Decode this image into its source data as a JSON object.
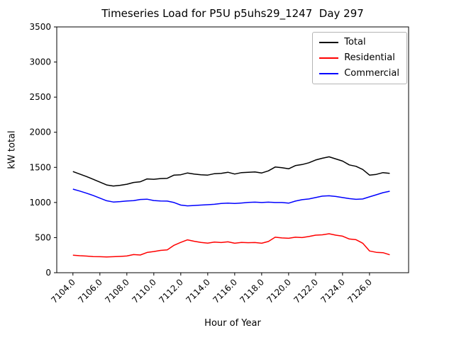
{
  "title": "Timeseries Load for P5U p5uhs29_1247  Day 297",
  "chart_data": {
    "type": "line",
    "title": "Timeseries Load for P5U p5uhs29_1247  Day 297",
    "xlabel": "Hour of Year",
    "ylabel": "kW total",
    "xlim": [
      7102.8,
      7128.9
    ],
    "ylim": [
      0,
      3500
    ],
    "grid": false,
    "legend_position": "upper right",
    "xticks": [
      7104,
      7106,
      7108,
      7110,
      7112,
      7114,
      7116,
      7118,
      7120,
      7122,
      7124,
      7126
    ],
    "xtick_labels": [
      "7104.0",
      "7106.0",
      "7108.0",
      "7110.0",
      "7112.0",
      "7114.0",
      "7116.0",
      "7118.0",
      "7120.0",
      "7122.0",
      "7124.0",
      "7126.0"
    ],
    "yticks": [
      0,
      500,
      1000,
      1500,
      2000,
      2500,
      3000,
      3500
    ],
    "ytick_labels": [
      "0",
      "500",
      "1000",
      "1500",
      "2000",
      "2500",
      "3000",
      "3500"
    ],
    "x": [
      7104,
      7104.5,
      7105,
      7105.5,
      7106,
      7106.5,
      7107,
      7107.5,
      7108,
      7108.5,
      7109,
      7109.5,
      7110,
      7110.5,
      7111,
      7111.5,
      7112,
      7112.5,
      7113,
      7113.5,
      7114,
      7114.5,
      7115,
      7115.5,
      7116,
      7116.5,
      7117,
      7117.5,
      7118,
      7118.5,
      7119,
      7119.5,
      7120,
      7120.5,
      7121,
      7121.5,
      7122,
      7122.5,
      7123,
      7123.5,
      7124,
      7124.5,
      7125,
      7125.5,
      7126,
      7126.5,
      7127,
      7127.5
    ],
    "series": [
      {
        "name": "Total",
        "color": "#000000",
        "values": [
          1440,
          1405,
          1370,
          1330,
          1290,
          1250,
          1235,
          1245,
          1260,
          1285,
          1295,
          1335,
          1330,
          1340,
          1345,
          1390,
          1395,
          1420,
          1405,
          1395,
          1390,
          1410,
          1415,
          1430,
          1405,
          1425,
          1430,
          1435,
          1420,
          1450,
          1505,
          1495,
          1480,
          1525,
          1540,
          1565,
          1605,
          1630,
          1650,
          1620,
          1590,
          1535,
          1515,
          1470,
          1390,
          1400,
          1425,
          1415
        ]
      },
      {
        "name": "Residential",
        "color": "#ff0000",
        "values": [
          250,
          242,
          237,
          230,
          228,
          225,
          228,
          232,
          238,
          258,
          252,
          288,
          302,
          318,
          325,
          390,
          432,
          468,
          448,
          432,
          422,
          436,
          430,
          440,
          420,
          432,
          428,
          430,
          420,
          445,
          505,
          495,
          490,
          505,
          500,
          515,
          535,
          540,
          555,
          535,
          520,
          480,
          470,
          420,
          310,
          290,
          285,
          255
        ]
      },
      {
        "name": "Commercial",
        "color": "#0000ff",
        "values": [
          1190,
          1163,
          1133,
          1100,
          1062,
          1025,
          1007,
          1013,
          1022,
          1027,
          1043,
          1047,
          1028,
          1022,
          1020,
          1000,
          963,
          952,
          957,
          963,
          968,
          974,
          985,
          990,
          985,
          993,
          1002,
          1005,
          1000,
          1005,
          1000,
          1000,
          990,
          1020,
          1040,
          1050,
          1070,
          1090,
          1095,
          1085,
          1070,
          1055,
          1045,
          1050,
          1080,
          1110,
          1140,
          1160
        ]
      }
    ]
  }
}
